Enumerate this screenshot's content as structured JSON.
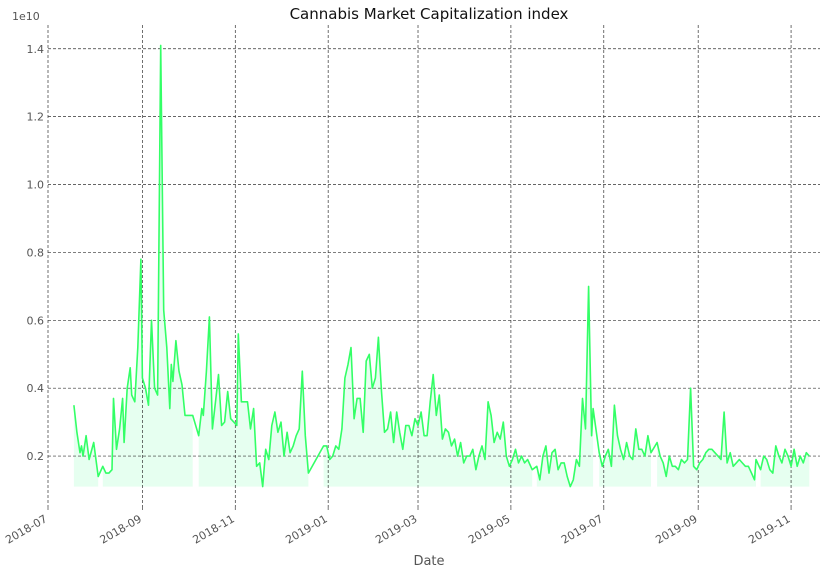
{
  "chart_data": {
    "type": "line",
    "title": "Cannabis Market Capitalization index",
    "xlabel": "Date",
    "ylabel": "",
    "y_scale_label": "1e10",
    "xlim": [
      "2018-07-01",
      "2019-11-20"
    ],
    "ylim": [
      0.05,
      1.47
    ],
    "grid": true,
    "legend": "none",
    "colors": {
      "line": "#33ff66",
      "fill": "#e6fff0"
    },
    "x_ticks": [
      "2018-07-01",
      "2018-09-01",
      "2018-11-01",
      "2019-01-01",
      "2019-03-01",
      "2019-05-01",
      "2019-07-01",
      "2019-09-01",
      "2019-11-01"
    ],
    "x_tick_labels": [
      "2018-07",
      "2018-09",
      "2018-11",
      "2019-01",
      "2019-03",
      "2019-05",
      "2019-07",
      "2019-09",
      "2019-11"
    ],
    "y_ticks": [
      0.2,
      0.4,
      0.6,
      0.8,
      1.0,
      1.2,
      1.4
    ],
    "y_tick_labels": [
      "0.2",
      "0.4",
      "0.6",
      "0.8",
      "1.0",
      "1.2",
      "1.4"
    ],
    "fill_base": 0.11,
    "fill_segments": [
      [
        "2018-07-18",
        "2018-08-03"
      ],
      [
        "2018-08-06",
        "2018-10-04"
      ],
      [
        "2018-10-08",
        "2018-12-25"
      ],
      [
        "2018-12-29",
        "2019-05-15"
      ],
      [
        "2019-05-18",
        "2019-06-26"
      ],
      [
        "2019-06-28",
        "2019-08-02"
      ],
      [
        "2019-08-05",
        "2019-10-09"
      ],
      [
        "2019-10-12",
        "2019-11-13"
      ]
    ],
    "series": [
      {
        "points": [
          [
            "2018-07-18",
            0.35
          ],
          [
            "2018-07-20",
            0.27
          ],
          [
            "2018-07-22",
            0.21
          ],
          [
            "2018-07-23",
            0.23
          ],
          [
            "2018-07-24",
            0.2
          ],
          [
            "2018-07-26",
            0.26
          ],
          [
            "2018-07-28",
            0.19
          ],
          [
            "2018-07-31",
            0.24
          ],
          [
            "2018-08-03",
            0.14
          ],
          [
            "2018-08-06",
            0.17
          ],
          [
            "2018-08-08",
            0.15
          ],
          [
            "2018-08-10",
            0.15
          ],
          [
            "2018-08-12",
            0.16
          ],
          [
            "2018-08-13",
            0.37
          ],
          [
            "2018-08-15",
            0.22
          ],
          [
            "2018-08-17",
            0.28
          ],
          [
            "2018-08-19",
            0.37
          ],
          [
            "2018-08-20",
            0.24
          ],
          [
            "2018-08-22",
            0.4
          ],
          [
            "2018-08-24",
            0.46
          ],
          [
            "2018-08-25",
            0.38
          ],
          [
            "2018-08-27",
            0.36
          ],
          [
            "2018-08-29",
            0.52
          ],
          [
            "2018-08-31",
            0.78
          ],
          [
            "2018-09-01",
            0.43
          ],
          [
            "2018-09-03",
            0.4
          ],
          [
            "2018-09-05",
            0.35
          ],
          [
            "2018-09-07",
            0.6
          ],
          [
            "2018-09-09",
            0.4
          ],
          [
            "2018-09-11",
            0.38
          ],
          [
            "2018-09-13",
            1.41
          ],
          [
            "2018-09-15",
            0.63
          ],
          [
            "2018-09-17",
            0.52
          ],
          [
            "2018-09-19",
            0.34
          ],
          [
            "2018-09-20",
            0.47
          ],
          [
            "2018-09-21",
            0.42
          ],
          [
            "2018-09-23",
            0.54
          ],
          [
            "2018-09-25",
            0.45
          ],
          [
            "2018-09-27",
            0.41
          ],
          [
            "2018-09-29",
            0.32
          ],
          [
            "2018-10-04",
            0.32
          ],
          [
            "2018-10-08",
            0.26
          ],
          [
            "2018-10-10",
            0.34
          ],
          [
            "2018-10-11",
            0.32
          ],
          [
            "2018-10-13",
            0.45
          ],
          [
            "2018-10-15",
            0.61
          ],
          [
            "2018-10-17",
            0.28
          ],
          [
            "2018-10-19",
            0.36
          ],
          [
            "2018-10-21",
            0.44
          ],
          [
            "2018-10-23",
            0.29
          ],
          [
            "2018-10-25",
            0.3
          ],
          [
            "2018-10-27",
            0.39
          ],
          [
            "2018-10-29",
            0.31
          ],
          [
            "2018-10-31",
            0.3
          ],
          [
            "2018-11-02",
            0.29
          ],
          [
            "2018-11-03",
            0.56
          ],
          [
            "2018-11-05",
            0.36
          ],
          [
            "2018-11-07",
            0.36
          ],
          [
            "2018-11-09",
            0.36
          ],
          [
            "2018-11-11",
            0.28
          ],
          [
            "2018-11-13",
            0.34
          ],
          [
            "2018-11-15",
            0.17
          ],
          [
            "2018-11-17",
            0.18
          ],
          [
            "2018-11-19",
            0.11
          ],
          [
            "2018-11-21",
            0.22
          ],
          [
            "2018-11-23",
            0.19
          ],
          [
            "2018-11-25",
            0.29
          ],
          [
            "2018-11-27",
            0.33
          ],
          [
            "2018-11-29",
            0.27
          ],
          [
            "2018-12-01",
            0.3
          ],
          [
            "2018-12-03",
            0.2
          ],
          [
            "2018-12-05",
            0.27
          ],
          [
            "2018-12-07",
            0.21
          ],
          [
            "2018-12-09",
            0.23
          ],
          [
            "2018-12-11",
            0.26
          ],
          [
            "2018-12-13",
            0.28
          ],
          [
            "2018-12-15",
            0.45
          ],
          [
            "2018-12-17",
            0.26
          ],
          [
            "2018-12-19",
            0.15
          ],
          [
            "2018-12-29",
            0.23
          ],
          [
            "2018-12-31",
            0.23
          ],
          [
            "2019-01-02",
            0.19
          ],
          [
            "2019-01-04",
            0.2
          ],
          [
            "2019-01-06",
            0.23
          ],
          [
            "2019-01-08",
            0.22
          ],
          [
            "2019-01-10",
            0.28
          ],
          [
            "2019-01-12",
            0.43
          ],
          [
            "2019-01-14",
            0.47
          ],
          [
            "2019-01-16",
            0.52
          ],
          [
            "2019-01-18",
            0.31
          ],
          [
            "2019-01-20",
            0.37
          ],
          [
            "2019-01-22",
            0.37
          ],
          [
            "2019-01-24",
            0.27
          ],
          [
            "2019-01-26",
            0.48
          ],
          [
            "2019-01-28",
            0.5
          ],
          [
            "2019-01-30",
            0.4
          ],
          [
            "2019-02-01",
            0.43
          ],
          [
            "2019-02-03",
            0.55
          ],
          [
            "2019-02-05",
            0.39
          ],
          [
            "2019-02-07",
            0.27
          ],
          [
            "2019-02-09",
            0.28
          ],
          [
            "2019-02-11",
            0.33
          ],
          [
            "2019-02-13",
            0.24
          ],
          [
            "2019-02-15",
            0.33
          ],
          [
            "2019-02-17",
            0.27
          ],
          [
            "2019-02-19",
            0.22
          ],
          [
            "2019-02-21",
            0.29
          ],
          [
            "2019-02-23",
            0.29
          ],
          [
            "2019-02-25",
            0.26
          ],
          [
            "2019-02-27",
            0.31
          ],
          [
            "2019-03-01",
            0.29
          ],
          [
            "2019-03-03",
            0.33
          ],
          [
            "2019-03-05",
            0.26
          ],
          [
            "2019-03-07",
            0.26
          ],
          [
            "2019-03-09",
            0.36
          ],
          [
            "2019-03-11",
            0.44
          ],
          [
            "2019-03-13",
            0.32
          ],
          [
            "2019-03-15",
            0.38
          ],
          [
            "2019-03-17",
            0.25
          ],
          [
            "2019-03-19",
            0.28
          ],
          [
            "2019-03-21",
            0.27
          ],
          [
            "2019-03-23",
            0.23
          ],
          [
            "2019-03-25",
            0.25
          ],
          [
            "2019-03-27",
            0.2
          ],
          [
            "2019-03-29",
            0.24
          ],
          [
            "2019-03-31",
            0.18
          ],
          [
            "2019-04-02",
            0.2
          ],
          [
            "2019-04-04",
            0.2
          ],
          [
            "2019-04-06",
            0.22
          ],
          [
            "2019-04-08",
            0.16
          ],
          [
            "2019-04-10",
            0.2
          ],
          [
            "2019-04-12",
            0.23
          ],
          [
            "2019-04-14",
            0.19
          ],
          [
            "2019-04-16",
            0.36
          ],
          [
            "2019-04-18",
            0.32
          ],
          [
            "2019-04-20",
            0.24
          ],
          [
            "2019-04-22",
            0.27
          ],
          [
            "2019-04-24",
            0.25
          ],
          [
            "2019-04-26",
            0.3
          ],
          [
            "2019-04-28",
            0.2
          ],
          [
            "2019-04-30",
            0.17
          ],
          [
            "2019-05-02",
            0.19
          ],
          [
            "2019-05-04",
            0.22
          ],
          [
            "2019-05-06",
            0.18
          ],
          [
            "2019-05-08",
            0.2
          ],
          [
            "2019-05-10",
            0.18
          ],
          [
            "2019-05-12",
            0.19
          ],
          [
            "2019-05-15",
            0.16
          ],
          [
            "2019-05-18",
            0.17
          ],
          [
            "2019-05-20",
            0.13
          ],
          [
            "2019-05-22",
            0.2
          ],
          [
            "2019-05-24",
            0.23
          ],
          [
            "2019-05-26",
            0.15
          ],
          [
            "2019-05-28",
            0.21
          ],
          [
            "2019-05-30",
            0.22
          ],
          [
            "2019-06-01",
            0.16
          ],
          [
            "2019-06-03",
            0.18
          ],
          [
            "2019-06-05",
            0.18
          ],
          [
            "2019-06-07",
            0.14
          ],
          [
            "2019-06-09",
            0.11
          ],
          [
            "2019-06-11",
            0.13
          ],
          [
            "2019-06-13",
            0.19
          ],
          [
            "2019-06-15",
            0.17
          ],
          [
            "2019-06-17",
            0.37
          ],
          [
            "2019-06-19",
            0.28
          ],
          [
            "2019-06-21",
            0.7
          ],
          [
            "2019-06-23",
            0.26
          ],
          [
            "2019-06-24",
            0.34
          ],
          [
            "2019-06-28",
            0.21
          ],
          [
            "2019-06-30",
            0.17
          ],
          [
            "2019-07-02",
            0.2
          ],
          [
            "2019-07-04",
            0.22
          ],
          [
            "2019-07-06",
            0.17
          ],
          [
            "2019-07-08",
            0.35
          ],
          [
            "2019-07-10",
            0.26
          ],
          [
            "2019-07-12",
            0.22
          ],
          [
            "2019-07-14",
            0.19
          ],
          [
            "2019-07-16",
            0.24
          ],
          [
            "2019-07-18",
            0.2
          ],
          [
            "2019-07-20",
            0.19
          ],
          [
            "2019-07-22",
            0.28
          ],
          [
            "2019-07-24",
            0.22
          ],
          [
            "2019-07-26",
            0.22
          ],
          [
            "2019-07-28",
            0.2
          ],
          [
            "2019-07-30",
            0.26
          ],
          [
            "2019-08-01",
            0.21
          ],
          [
            "2019-08-05",
            0.24
          ],
          [
            "2019-08-07",
            0.2
          ],
          [
            "2019-08-09",
            0.18
          ],
          [
            "2019-08-11",
            0.14
          ],
          [
            "2019-08-13",
            0.2
          ],
          [
            "2019-08-15",
            0.17
          ],
          [
            "2019-08-17",
            0.17
          ],
          [
            "2019-08-19",
            0.16
          ],
          [
            "2019-08-21",
            0.19
          ],
          [
            "2019-08-23",
            0.18
          ],
          [
            "2019-08-25",
            0.19
          ],
          [
            "2019-08-27",
            0.4
          ],
          [
            "2019-08-29",
            0.17
          ],
          [
            "2019-08-31",
            0.16
          ],
          [
            "2019-09-02",
            0.18
          ],
          [
            "2019-09-04",
            0.19
          ],
          [
            "2019-09-06",
            0.21
          ],
          [
            "2019-09-08",
            0.22
          ],
          [
            "2019-09-10",
            0.22
          ],
          [
            "2019-09-12",
            0.21
          ],
          [
            "2019-09-14",
            0.2
          ],
          [
            "2019-09-16",
            0.19
          ],
          [
            "2019-09-18",
            0.33
          ],
          [
            "2019-09-20",
            0.18
          ],
          [
            "2019-09-22",
            0.21
          ],
          [
            "2019-09-24",
            0.17
          ],
          [
            "2019-09-26",
            0.18
          ],
          [
            "2019-09-28",
            0.19
          ],
          [
            "2019-09-30",
            0.18
          ],
          [
            "2019-10-02",
            0.17
          ],
          [
            "2019-10-04",
            0.17
          ],
          [
            "2019-10-06",
            0.15
          ],
          [
            "2019-10-08",
            0.13
          ],
          [
            "2019-10-09",
            0.19
          ],
          [
            "2019-10-12",
            0.16
          ],
          [
            "2019-10-14",
            0.2
          ],
          [
            "2019-10-16",
            0.19
          ],
          [
            "2019-10-18",
            0.16
          ],
          [
            "2019-10-20",
            0.15
          ],
          [
            "2019-10-22",
            0.23
          ],
          [
            "2019-10-24",
            0.2
          ],
          [
            "2019-10-26",
            0.18
          ],
          [
            "2019-10-28",
            0.22
          ],
          [
            "2019-10-30",
            0.2
          ],
          [
            "2019-11-01",
            0.17
          ],
          [
            "2019-11-03",
            0.22
          ],
          [
            "2019-11-05",
            0.17
          ],
          [
            "2019-11-07",
            0.2
          ],
          [
            "2019-11-09",
            0.18
          ],
          [
            "2019-11-11",
            0.21
          ],
          [
            "2019-11-13",
            0.2
          ]
        ]
      }
    ]
  }
}
